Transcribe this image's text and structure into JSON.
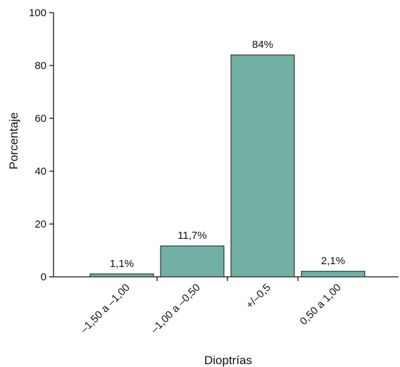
{
  "chart_data": {
    "type": "bar",
    "categories": [
      "–1,50 a –1,00",
      "–1,00 a –0,50",
      "+/–0,5",
      "0,50 a 1,00"
    ],
    "values": [
      1.1,
      11.7,
      84,
      2.1
    ],
    "data_labels": [
      "1,1%",
      "11,7%",
      "84%",
      "2,1%"
    ],
    "xlabel": "Dioptrías",
    "ylabel": "Porcentaje",
    "ylim": [
      0,
      100
    ],
    "yticks": [
      0,
      20,
      40,
      60,
      80,
      100
    ],
    "grid": false,
    "bar_color": "#72b0a5",
    "bar_edge_color": "#1a1a1a"
  }
}
